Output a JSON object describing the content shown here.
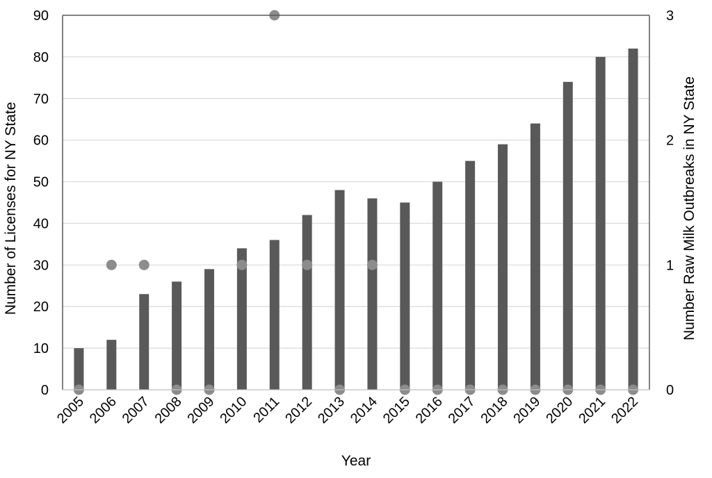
{
  "chart_data": {
    "type": "bar",
    "categories": [
      "2005",
      "2006",
      "2007",
      "2008",
      "2009",
      "2010",
      "2011",
      "2012",
      "2013",
      "2014",
      "2015",
      "2016",
      "2017",
      "2018",
      "2019",
      "2020",
      "2021",
      "2022"
    ],
    "series": [
      {
        "name": "",
        "type": "bar",
        "axis": "left",
        "color": "#595959",
        "values": [
          10,
          12,
          23,
          26,
          29,
          34,
          36,
          42,
          48,
          46,
          45,
          50,
          55,
          59,
          64,
          74,
          80,
          82
        ]
      },
      {
        "name": "",
        "type": "scatter",
        "axis": "right",
        "color": "#8c8c8c",
        "values": [
          0,
          1,
          1,
          0,
          0,
          1,
          3,
          1,
          0,
          1,
          0,
          0,
          0,
          0,
          0,
          0,
          0,
          0
        ]
      }
    ],
    "xlabel": "Year",
    "ylabel": "Number of Licenses for NY State",
    "y2label": "Number Raw Milk Outbreaks in NY State",
    "ylim": [
      0,
      90
    ],
    "y2lim": [
      0,
      3
    ],
    "yticks": [
      "0",
      "10",
      "20",
      "30",
      "40",
      "50",
      "60",
      "70",
      "80",
      "90"
    ],
    "y2ticks": [
      "0",
      "1",
      "2",
      "3"
    ],
    "grid": true,
    "legend": "none"
  }
}
